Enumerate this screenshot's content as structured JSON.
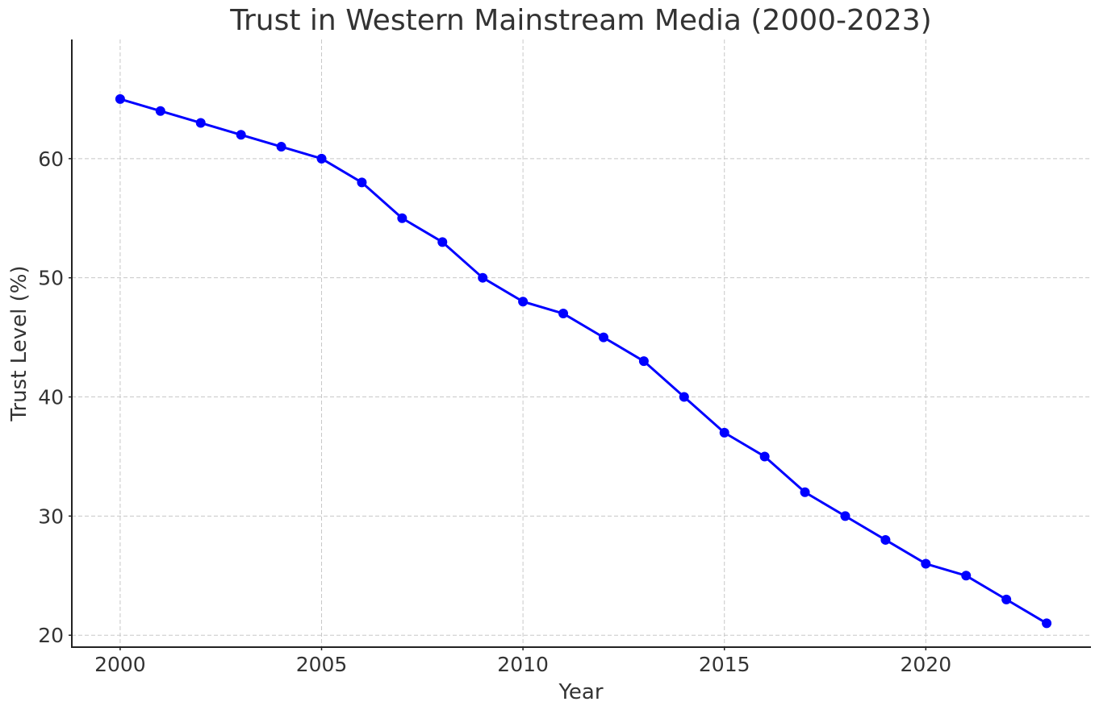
{
  "chart_data": {
    "type": "line",
    "title": "Trust in Western Mainstream Media (2000-2023)",
    "xlabel": "Year",
    "ylabel": "Trust Level (%)",
    "xlim": [
      1998.8,
      2024.1
    ],
    "ylim": [
      19.0,
      70.0
    ],
    "xticks": [
      2000,
      2005,
      2010,
      2015,
      2020
    ],
    "yticks": [
      20,
      30,
      40,
      50,
      60
    ],
    "grid": true,
    "legend": "none",
    "series": [
      {
        "color": "#0000ff",
        "marker": "circle",
        "x": [
          2000,
          2001,
          2002,
          2003,
          2004,
          2005,
          2006,
          2007,
          2008,
          2009,
          2010,
          2011,
          2012,
          2013,
          2014,
          2015,
          2016,
          2017,
          2018,
          2019,
          2020,
          2021,
          2022,
          2023
        ],
        "y": [
          65,
          64,
          63,
          62,
          61,
          60,
          58,
          55,
          53,
          50,
          48,
          47,
          45,
          43,
          40,
          37,
          35,
          32,
          30,
          28,
          26,
          25,
          23,
          21
        ]
      }
    ]
  }
}
